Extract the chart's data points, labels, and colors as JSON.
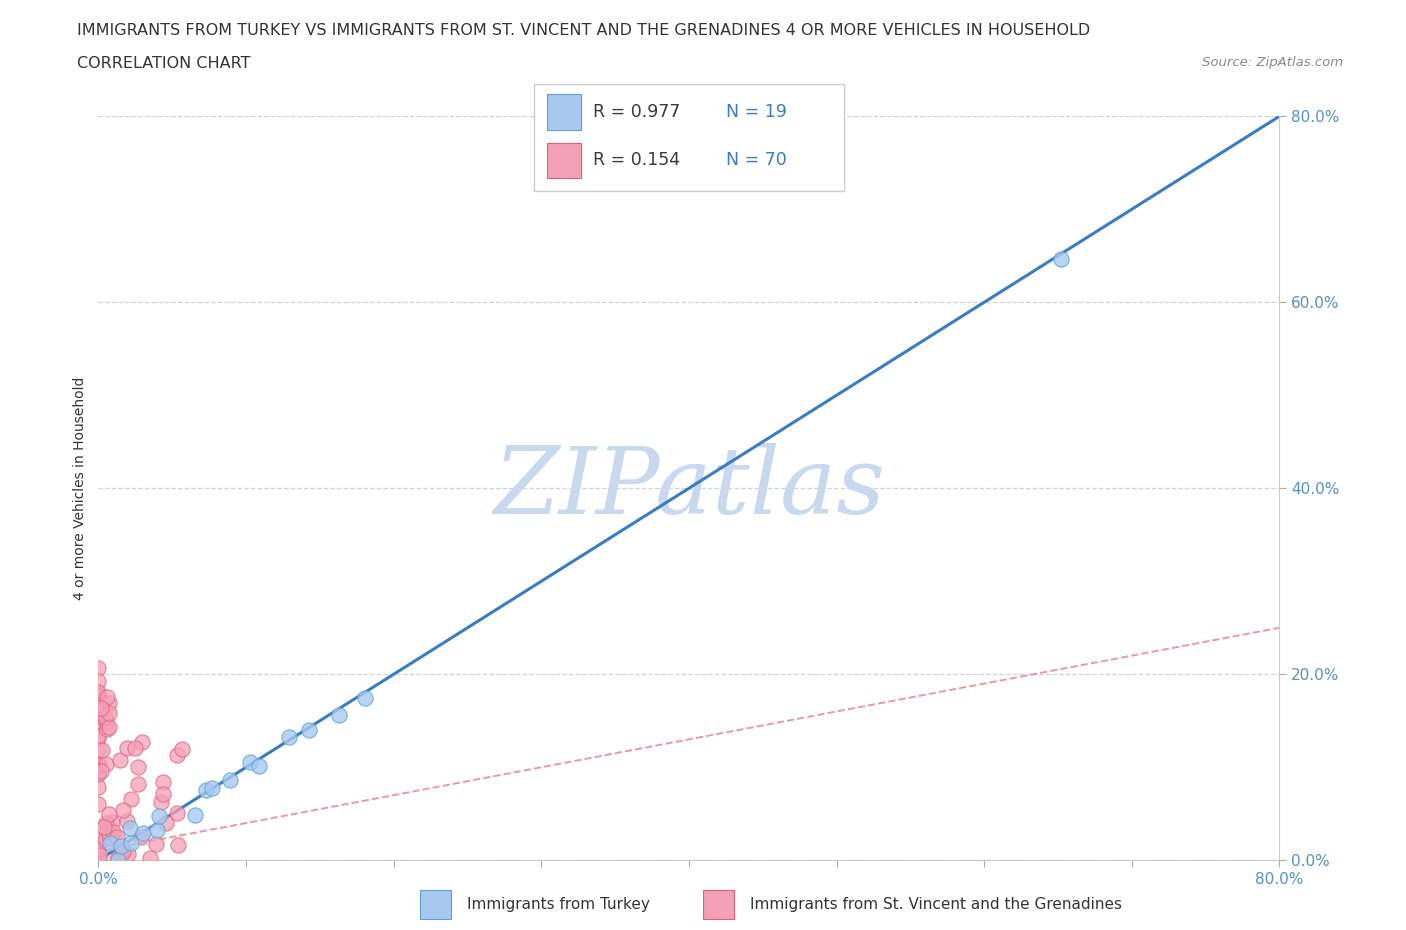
{
  "title_line1": "IMMIGRANTS FROM TURKEY VS IMMIGRANTS FROM ST. VINCENT AND THE GRENADINES 4 OR MORE VEHICLES IN HOUSEHOLD",
  "title_line2": "CORRELATION CHART",
  "source_text": "Source: ZipAtlas.com",
  "ylabel": "4 or more Vehicles in Household",
  "xmin": 0.0,
  "xmax": 0.8,
  "ymin": 0.0,
  "ymax": 0.8,
  "color_turkey": "#a8c8f0",
  "color_turkey_edge": "#5ba3d0",
  "color_svg": "#f4a0b8",
  "color_svg_edge": "#e0607a",
  "regression_turkey_color": "#3a7cc0",
  "regression_svg_color": "#e08898",
  "watermark_color": "#c8d8ee",
  "tick_color": "#5590c8",
  "title_fontsize": 11.5,
  "subtitle_fontsize": 11.5,
  "axis_label_fontsize": 10,
  "tick_fontsize": 11,
  "watermark_fontsize": 68,
  "legend_r1": "R = 0.977",
  "legend_n1": "N = 19",
  "legend_r2": "R = 0.154",
  "legend_n2": "N = 70",
  "legend_text_color": "#3a3a3a",
  "legend_val_color": "#3a7cc0"
}
